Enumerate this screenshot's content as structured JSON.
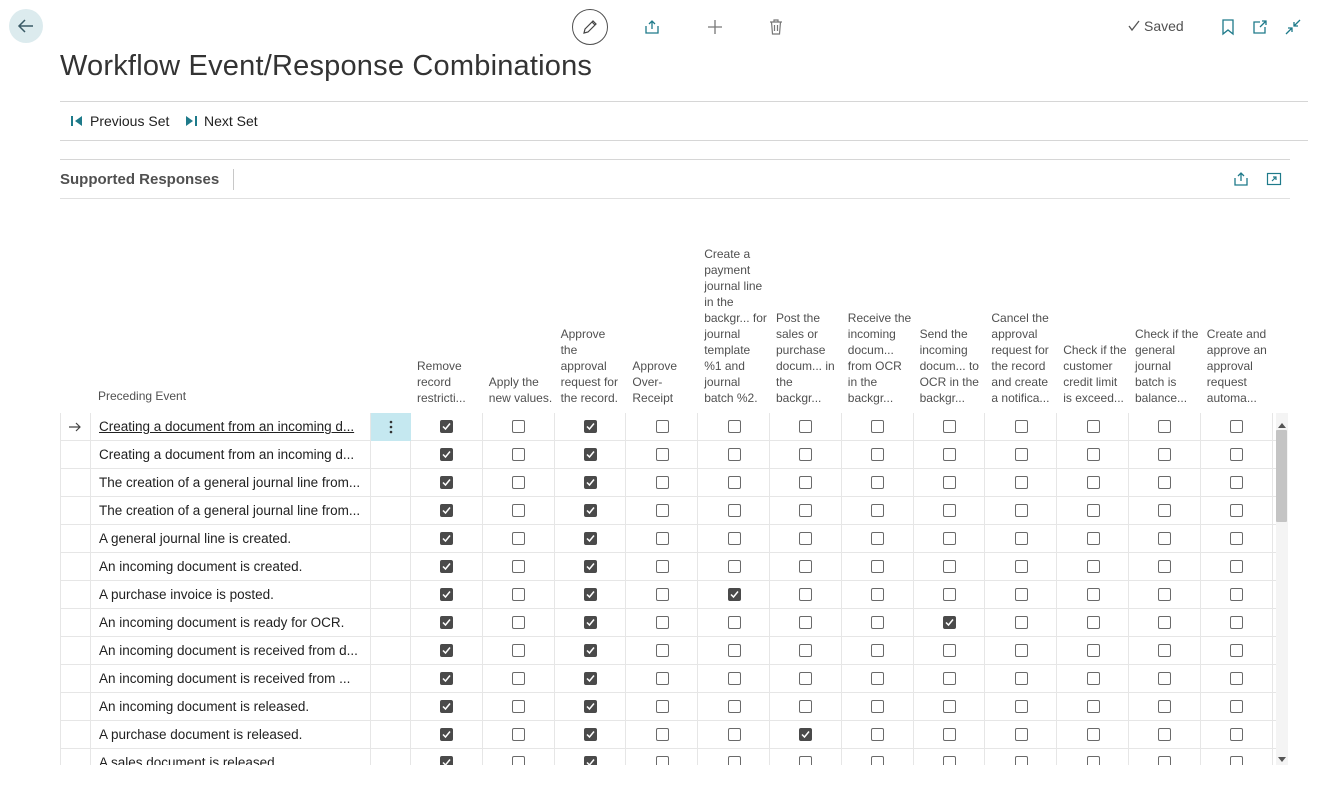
{
  "header": {
    "saved_label": "Saved"
  },
  "page": {
    "title": "Workflow Event/Response Combinations"
  },
  "actions": {
    "previous_set": "Previous Set",
    "next_set": "Next Set"
  },
  "section": {
    "title": "Supported Responses"
  },
  "table": {
    "event_header": "Preceding Event",
    "response_headers": [
      "Remove record restricti...",
      "Apply the new values.",
      "Approve the approval request for the record.",
      "Approve Over-Receipt",
      "Create a payment journal line in the backgr... for journal template %1 and journal batch %2.",
      "Post the sales or purchase docum... in the backgr...",
      "Receive the incoming docum... from OCR in the backgr...",
      "Send the incoming docum... to OCR in the backgr...",
      "Cancel the approval request for the record and create a notifica...",
      "Check if the customer credit limit is exceed...",
      "Check if the general journal batch is balance...",
      "Create and approve an approval request automa..."
    ],
    "rows": [
      {
        "event": "Creating a document from an incoming d...",
        "checks": [
          true,
          false,
          true,
          false,
          false,
          false,
          false,
          false,
          false,
          false,
          false,
          false
        ]
      },
      {
        "event": "Creating a document from an incoming d...",
        "checks": [
          true,
          false,
          true,
          false,
          false,
          false,
          false,
          false,
          false,
          false,
          false,
          false
        ]
      },
      {
        "event": "The creation of a general journal line from...",
        "checks": [
          true,
          false,
          true,
          false,
          false,
          false,
          false,
          false,
          false,
          false,
          false,
          false
        ]
      },
      {
        "event": "The creation of a general journal line from...",
        "checks": [
          true,
          false,
          true,
          false,
          false,
          false,
          false,
          false,
          false,
          false,
          false,
          false
        ]
      },
      {
        "event": "A general journal line is created.",
        "checks": [
          true,
          false,
          true,
          false,
          false,
          false,
          false,
          false,
          false,
          false,
          false,
          false
        ]
      },
      {
        "event": "An incoming document is created.",
        "checks": [
          true,
          false,
          true,
          false,
          false,
          false,
          false,
          false,
          false,
          false,
          false,
          false
        ]
      },
      {
        "event": "A purchase invoice is posted.",
        "checks": [
          true,
          false,
          true,
          false,
          true,
          false,
          false,
          false,
          false,
          false,
          false,
          false
        ]
      },
      {
        "event": "An incoming document is ready for OCR.",
        "checks": [
          true,
          false,
          true,
          false,
          false,
          false,
          false,
          true,
          false,
          false,
          false,
          false
        ]
      },
      {
        "event": "An incoming document is received from d...",
        "checks": [
          true,
          false,
          true,
          false,
          false,
          false,
          false,
          false,
          false,
          false,
          false,
          false
        ]
      },
      {
        "event": "An incoming document is received from ...",
        "checks": [
          true,
          false,
          true,
          false,
          false,
          false,
          false,
          false,
          false,
          false,
          false,
          false
        ]
      },
      {
        "event": "An incoming document is released.",
        "checks": [
          true,
          false,
          true,
          false,
          false,
          false,
          false,
          false,
          false,
          false,
          false,
          false
        ]
      },
      {
        "event": "A purchase document is released.",
        "checks": [
          true,
          false,
          true,
          false,
          false,
          true,
          false,
          false,
          false,
          false,
          false,
          false
        ]
      },
      {
        "event": "A sales document is released.",
        "checks": [
          true,
          false,
          true,
          false,
          false,
          false,
          false,
          false,
          false,
          false,
          false,
          false
        ]
      }
    ]
  }
}
